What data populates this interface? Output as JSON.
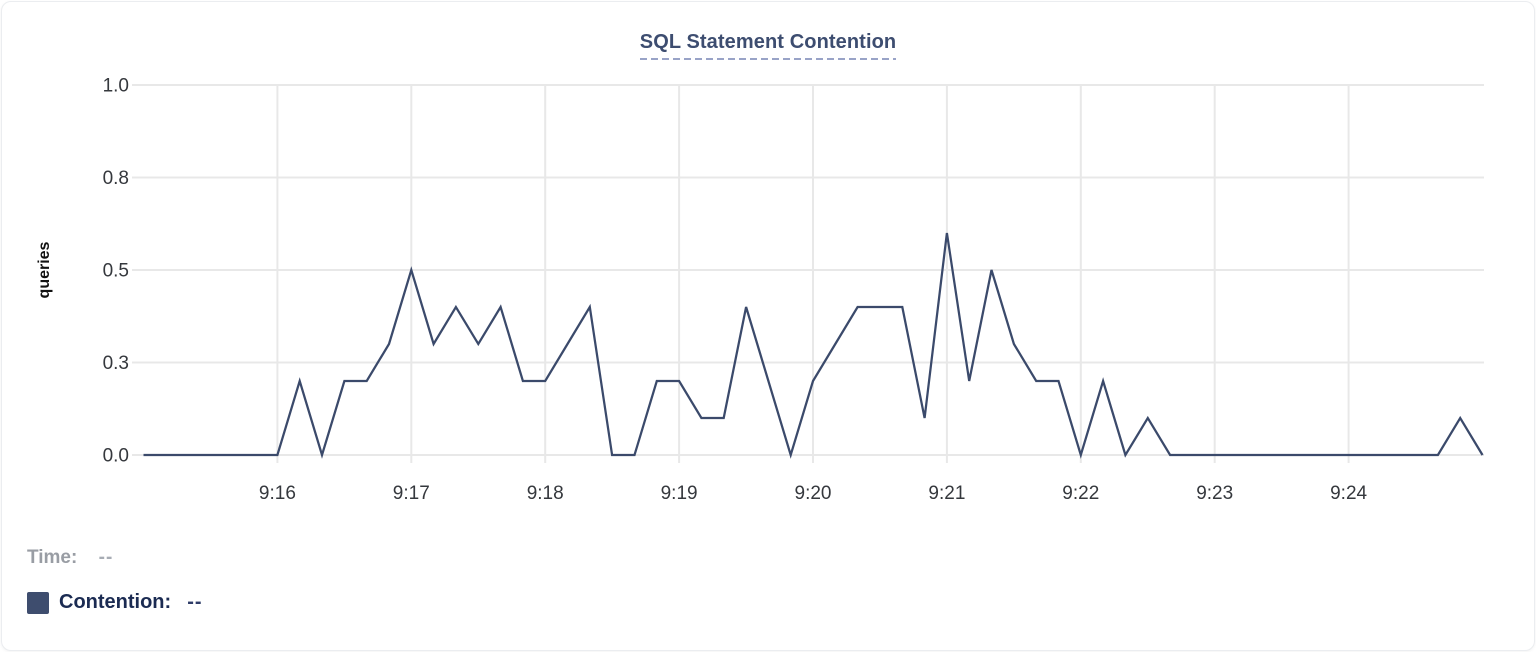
{
  "card": {
    "title": "SQL Statement Contention"
  },
  "chart_data": {
    "type": "line",
    "title": "SQL Statement Contention",
    "xlabel": "",
    "ylabel": "queries",
    "ylim": [
      0,
      1
    ],
    "grid": true,
    "legend_position": "bottom-left",
    "x_start": "9:15:00",
    "x_end": "9:25:00",
    "x_step_seconds": 10,
    "x_tick_labels": [
      "9:16",
      "9:17",
      "9:18",
      "9:19",
      "9:20",
      "9:21",
      "9:22",
      "9:23",
      "9:24"
    ],
    "y_ticks": [
      {
        "value": 0,
        "label": "0.0"
      },
      {
        "value": 0.25,
        "label": "0.3"
      },
      {
        "value": 0.5,
        "label": "0.5"
      },
      {
        "value": 0.75,
        "label": "0.8"
      },
      {
        "value": 1,
        "label": "1.0"
      }
    ],
    "series": [
      {
        "name": "Contention",
        "unit": "queries",
        "color": "#3b4a6b",
        "values": [
          0,
          0,
          0,
          0,
          0,
          0,
          0,
          0.2,
          0,
          0.2,
          0.2,
          0.3,
          0.5,
          0.3,
          0.4,
          0.3,
          0.4,
          0.2,
          0.2,
          0.3,
          0.4,
          0,
          0,
          0.2,
          0.2,
          0.1,
          0.1,
          0.4,
          0.2,
          0,
          0.2,
          0.3,
          0.4,
          0.4,
          0.4,
          0.1,
          0.6,
          0.2,
          0.5,
          0.3,
          0.2,
          0.2,
          0,
          0.2,
          0,
          0.1,
          0,
          0,
          0,
          0,
          0,
          0,
          0,
          0,
          0,
          0,
          0,
          0,
          0,
          0.1,
          0
        ]
      }
    ]
  },
  "footer": {
    "time_label": "Time:",
    "time_value": "--",
    "series_label": "Contention:",
    "series_value": "--",
    "swatch_color": "#3e4d6e"
  },
  "colors": {
    "line": "#3b4a6b",
    "grid": "#e8e8e8",
    "axis_text": "#35383d",
    "title": "#3d4d70",
    "title_underline": "#99a3c7"
  }
}
